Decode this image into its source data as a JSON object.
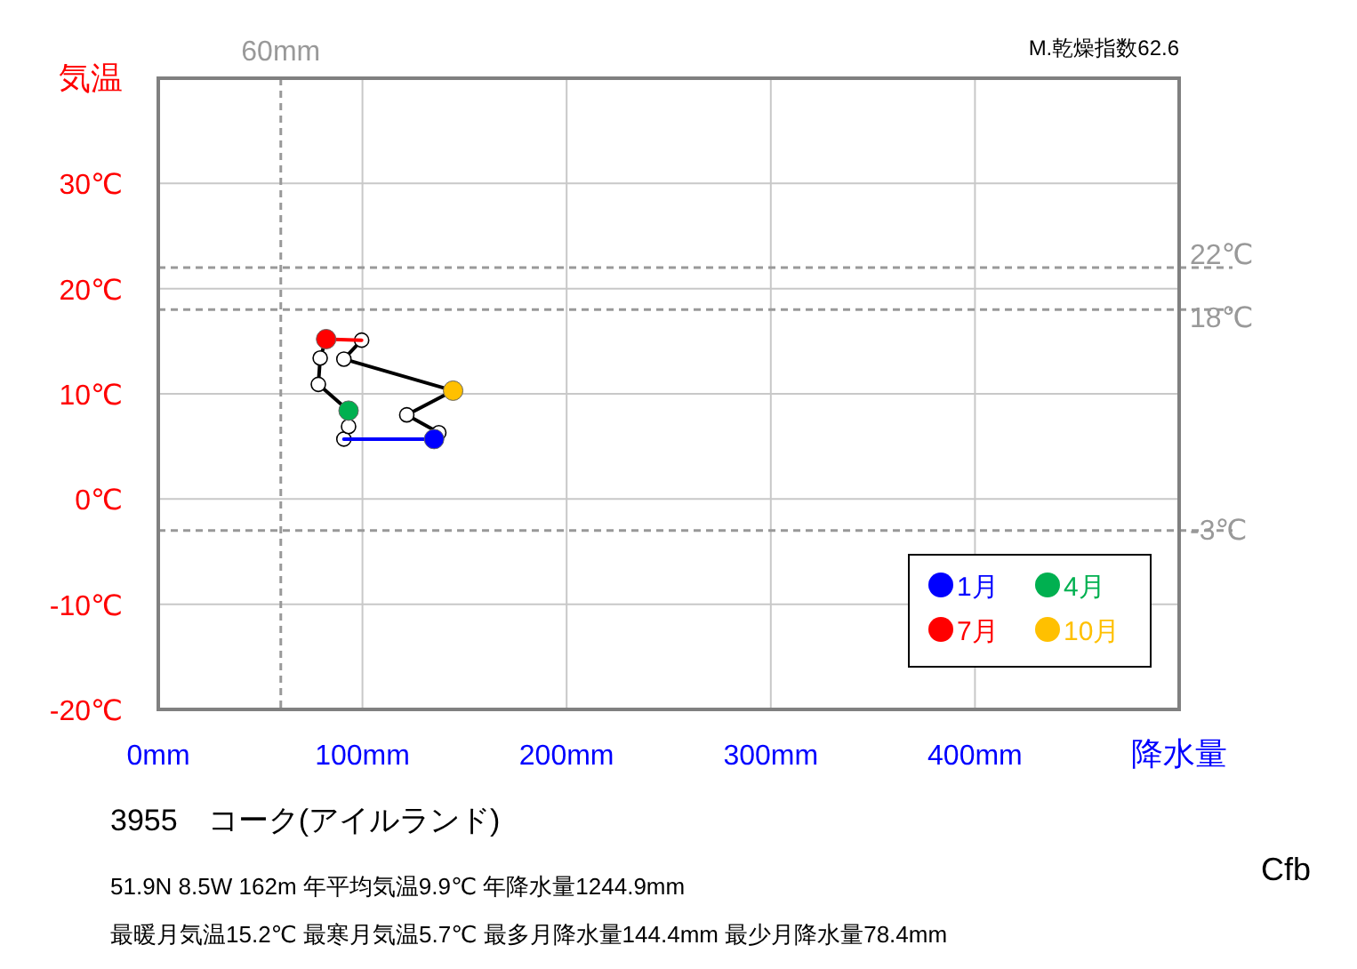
{
  "chart_data": {
    "type": "line",
    "title": "3955　コーク(アイルランド)",
    "xlabel": "降水量",
    "ylabel": "気温",
    "xlim": [
      0,
      500
    ],
    "ylim": [
      -20,
      40
    ],
    "xticks": [
      {
        "value": 0,
        "label": "0mm"
      },
      {
        "value": 100,
        "label": "100mm"
      },
      {
        "value": 200,
        "label": "200mm"
      },
      {
        "value": 300,
        "label": "300mm"
      },
      {
        "value": 400,
        "label": "400mm"
      }
    ],
    "yticks": [
      {
        "value": -20,
        "label": "-20℃"
      },
      {
        "value": -10,
        "label": "-10℃"
      },
      {
        "value": 0,
        "label": "0℃"
      },
      {
        "value": 10,
        "label": "10℃"
      },
      {
        "value": 20,
        "label": "20℃"
      },
      {
        "value": 30,
        "label": "30℃"
      }
    ],
    "grid": true,
    "legend": "bottom right",
    "marker": "circle",
    "series": [
      {
        "type": "line",
        "marker": "none",
        "color": "#000000",
        "x": [
          90.9,
          93.2,
          93.2,
          78.4,
          79.3,
          82.2
        ],
        "values": [
          5.7,
          6.9,
          8.4,
          10.9,
          13.4,
          15.2
        ]
      },
      {
        "type": "line",
        "marker": "none",
        "color": "#000000",
        "x": [
          99.6,
          90.9,
          144.4,
          121.7,
          137.4,
          135.1
        ],
        "values": [
          15.1,
          13.3,
          10.3,
          8.0,
          6.3,
          5.7
        ]
      },
      {
        "type": "scatter",
        "color": "#ffffff",
        "x": [
          90.9,
          93.2,
          78.4,
          79.3,
          99.6,
          90.9,
          121.7,
          137.4
        ],
        "values": [
          5.7,
          6.9,
          10.9,
          13.4,
          15.1,
          13.3,
          8.0,
          6.3
        ]
      },
      {
        "type": "line",
        "color": "#0000ff",
        "marker": "none",
        "x": [
          135.1,
          90.9
        ],
        "values": [
          5.7,
          5.7
        ]
      },
      {
        "type": "line",
        "color": "#ff0000",
        "marker": "none",
        "x": [
          82.2,
          99.6
        ],
        "values": [
          15.2,
          15.1
        ]
      },
      {
        "type": "scatter",
        "name": "1月",
        "color": "#0000ff",
        "x": [
          135.1
        ],
        "values": [
          5.7
        ]
      },
      {
        "type": "scatter",
        "name": "4月",
        "color": "#00b050",
        "x": [
          93.2
        ],
        "values": [
          8.4
        ]
      },
      {
        "type": "scatter",
        "name": "7月",
        "color": "#ff0000",
        "x": [
          82.2
        ],
        "values": [
          15.2
        ]
      },
      {
        "type": "scatter",
        "name": "10月",
        "color": "#ffc000",
        "x": [
          144.4
        ],
        "values": [
          10.3
        ]
      }
    ],
    "ref_lines": [
      {
        "axis": "x",
        "value": 60,
        "label": "60mm",
        "color": "#999999",
        "line_style": "dashed"
      },
      {
        "axis": "y",
        "value": 22,
        "label": "22℃",
        "color": "#999999",
        "line_style": "dashed"
      },
      {
        "axis": "y",
        "value": 18,
        "label": "18℃",
        "color": "#999999",
        "line_style": "dashed"
      },
      {
        "axis": "y",
        "value": -3,
        "label": "-3℃",
        "color": "#999999",
        "line_style": "dashed"
      }
    ],
    "annotations": [
      "M.乾燥指数62.6",
      "51.9N  8.5W 162m  年平均気温9.9℃ 年降水量1244.9mm",
      "最暖月気温15.2℃ 最寒月気温5.7℃ 最多月降水量144.4mm 最少月降水量78.4mm",
      "Cfb"
    ]
  }
}
